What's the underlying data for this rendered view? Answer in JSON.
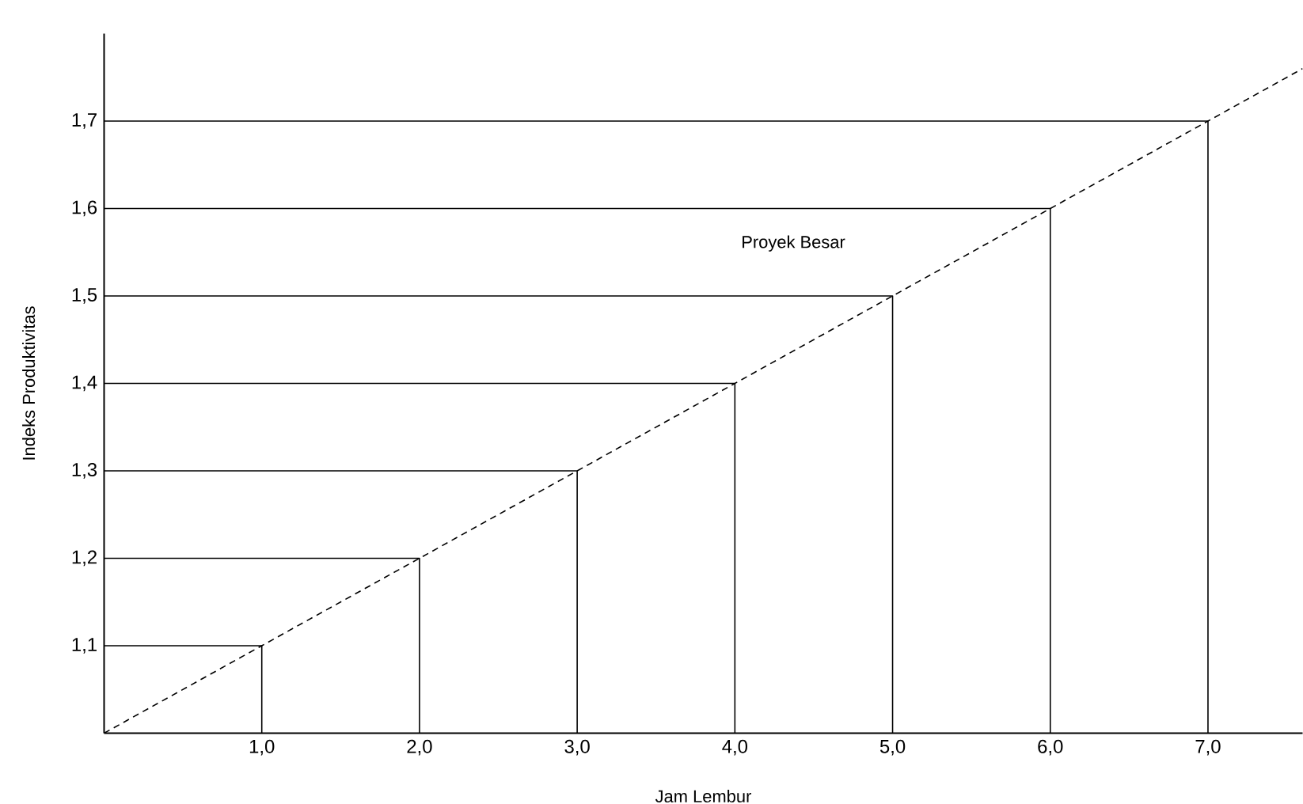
{
  "chart_data": {
    "type": "line",
    "xlabel": "Jam Lembur",
    "ylabel": "Indeks Produktivitas",
    "xlim": [
      0,
      7.6
    ],
    "ylim": [
      1.0,
      1.8
    ],
    "xticks": [
      {
        "value": 1,
        "label": "1,0"
      },
      {
        "value": 2,
        "label": "2,0"
      },
      {
        "value": 3,
        "label": "3,0"
      },
      {
        "value": 4,
        "label": "4,0"
      },
      {
        "value": 5,
        "label": "5,0"
      },
      {
        "value": 6,
        "label": "6,0"
      },
      {
        "value": 7,
        "label": "7,0"
      }
    ],
    "yticks": [
      {
        "value": 1.1,
        "label": "1,1"
      },
      {
        "value": 1.2,
        "label": "1,2"
      },
      {
        "value": 1.3,
        "label": "1,3"
      },
      {
        "value": 1.4,
        "label": "1,4"
      },
      {
        "value": 1.5,
        "label": "1,5"
      },
      {
        "value": 1.6,
        "label": "1,6"
      },
      {
        "value": 1.7,
        "label": "1,7"
      }
    ],
    "grid": false,
    "marker": "none",
    "annotations": [
      "Proyek Besar"
    ],
    "series": [
      {
        "color": "#000000",
        "line_style": "dashed",
        "x": [
          0,
          1,
          2,
          3,
          4,
          5,
          6,
          7,
          7.6
        ],
        "values": [
          1.0,
          1.1,
          1.2,
          1.3,
          1.4,
          1.5,
          1.6,
          1.7,
          1.76
        ]
      },
      {
        "color": "#000000",
        "line_style": "solid",
        "x": [
          0,
          1,
          1
        ],
        "values": [
          1.1,
          1.1,
          1.0
        ]
      },
      {
        "color": "#000000",
        "line_style": "solid",
        "x": [
          0,
          2,
          2
        ],
        "values": [
          1.2,
          1.2,
          1.0
        ]
      },
      {
        "color": "#000000",
        "line_style": "solid",
        "x": [
          0,
          3,
          3
        ],
        "values": [
          1.3,
          1.3,
          1.0
        ]
      },
      {
        "color": "#000000",
        "line_style": "solid",
        "x": [
          0,
          4,
          4
        ],
        "values": [
          1.4,
          1.4,
          1.0
        ]
      },
      {
        "color": "#000000",
        "line_style": "solid",
        "x": [
          0,
          5,
          5
        ],
        "values": [
          1.5,
          1.5,
          1.0
        ]
      },
      {
        "color": "#000000",
        "line_style": "solid",
        "x": [
          0,
          6,
          6
        ],
        "values": [
          1.6,
          1.6,
          1.0
        ]
      },
      {
        "color": "#000000",
        "line_style": "solid",
        "x": [
          0,
          7,
          7
        ],
        "values": [
          1.7,
          1.7,
          1.0
        ]
      }
    ]
  }
}
